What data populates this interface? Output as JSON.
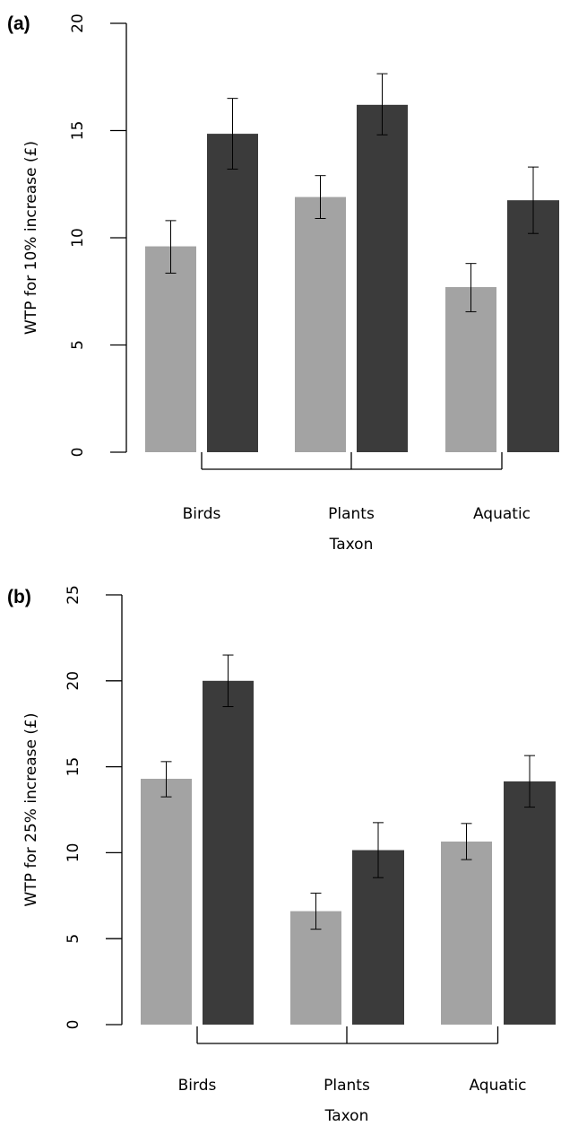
{
  "colors": {
    "series_a": "#a3a3a3",
    "series_b": "#3b3b3b",
    "axis": "#000000",
    "error_bar": "#000000"
  },
  "chart_data": [
    {
      "type": "bar",
      "panel_label": "(a)",
      "ylabel": "WTP for 10% increase (£)",
      "xlabel": "Taxon",
      "categories": [
        "Birds",
        "Plants",
        "Aquatic"
      ],
      "ylim": [
        0,
        20
      ],
      "yticks": [
        "0",
        "5",
        "10",
        "15",
        "20"
      ],
      "series": [
        {
          "values": [
            9.6,
            11.9,
            7.7
          ],
          "err_low": [
            8.35,
            10.9,
            6.55
          ],
          "err_high": [
            10.8,
            12.9,
            8.8
          ]
        },
        {
          "values": [
            14.85,
            16.2,
            11.75
          ],
          "err_low": [
            13.2,
            14.8,
            10.2
          ],
          "err_high": [
            16.5,
            17.65,
            13.3
          ]
        }
      ],
      "grid": false
    },
    {
      "type": "bar",
      "panel_label": "(b)",
      "ylabel": "WTP for 25% increase (£)",
      "xlabel": "Taxon",
      "categories": [
        "Birds",
        "Plants",
        "Aquatic"
      ],
      "ylim": [
        0,
        25
      ],
      "yticks": [
        "0",
        "5",
        "10",
        "15",
        "20",
        "25"
      ],
      "series": [
        {
          "values": [
            14.3,
            6.6,
            10.65
          ],
          "err_low": [
            13.25,
            5.55,
            9.6
          ],
          "err_high": [
            15.3,
            7.65,
            11.7
          ]
        },
        {
          "values": [
            20.0,
            10.15,
            14.15
          ],
          "err_low": [
            18.5,
            8.55,
            12.65
          ],
          "err_high": [
            21.5,
            11.75,
            15.65
          ]
        }
      ],
      "grid": false
    }
  ]
}
